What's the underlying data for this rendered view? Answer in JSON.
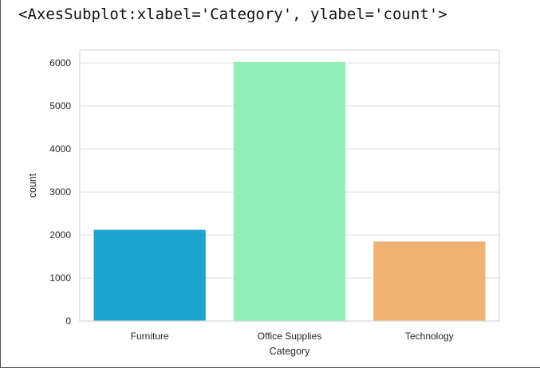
{
  "output": {
    "repr_text": "<AxesSubplot:xlabel='Category', ylabel='count'>"
  },
  "chart_data": {
    "type": "bar",
    "categories": [
      "Furniture",
      "Office Supplies",
      "Technology"
    ],
    "values": [
      2121,
      6026,
      1847
    ],
    "colors": [
      "#1ca5cc",
      "#92f0b6",
      "#efb272"
    ],
    "xlabel": "Category",
    "ylabel": "count",
    "ylim": [
      0,
      6300
    ],
    "yticks": [
      0,
      1000,
      2000,
      3000,
      4000,
      5000,
      6000
    ],
    "ytick_labels": [
      "0",
      "1000",
      "2000",
      "3000",
      "4000",
      "5000",
      "6000"
    ],
    "grid": true,
    "style": "seaborn-whitegrid",
    "grid_color": "#e6e6e6",
    "frame_color": "#d9d9d9"
  }
}
